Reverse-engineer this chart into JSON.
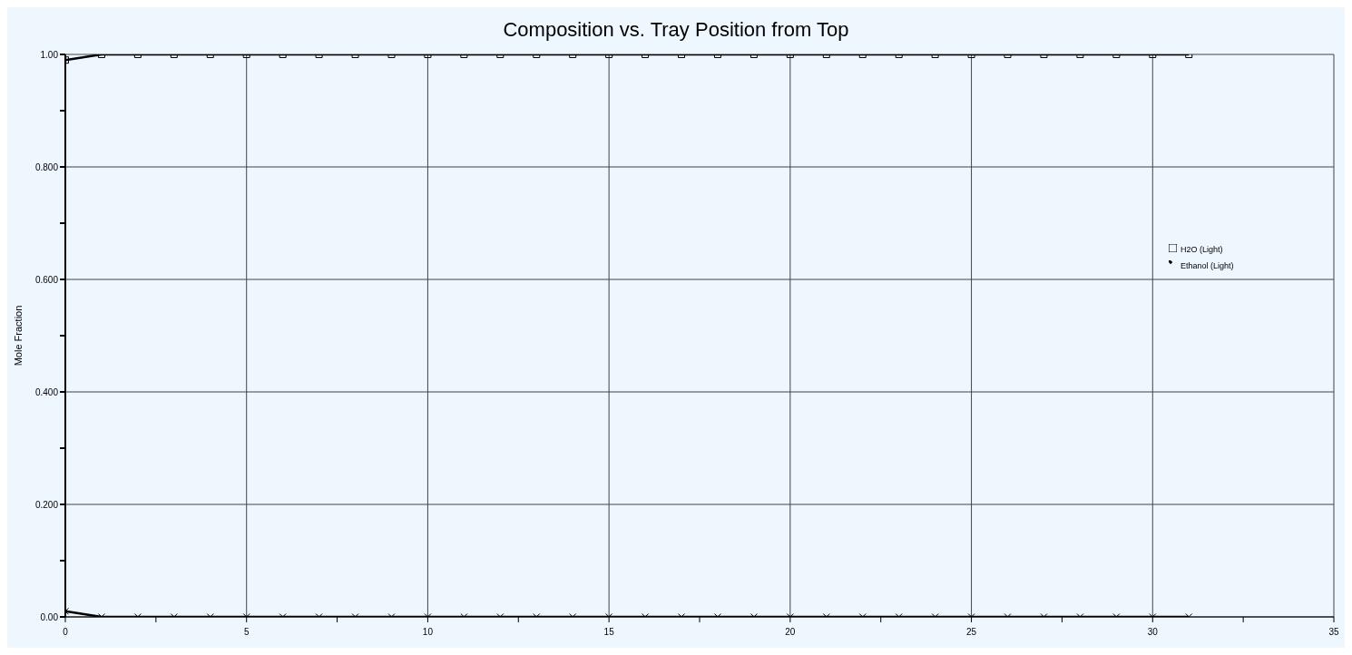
{
  "chart_data": {
    "type": "line",
    "title": "Composition vs. Tray Position from Top",
    "ylabel": "Mole Fraction",
    "x": [
      0,
      1,
      2,
      3,
      4,
      5,
      6,
      7,
      8,
      9,
      10,
      11,
      12,
      13,
      14,
      15,
      16,
      17,
      18,
      19,
      20,
      21,
      22,
      23,
      24,
      25,
      26,
      27,
      28,
      29,
      30,
      31
    ],
    "series": [
      {
        "name": "H2O (Light)",
        "color": "#000000",
        "marker": "square",
        "values": [
          0.99,
          1,
          1,
          1,
          1,
          1,
          1,
          1,
          1,
          1,
          1,
          1,
          1,
          1,
          1,
          1,
          1,
          1,
          1,
          1,
          1,
          1,
          1,
          1,
          1,
          1,
          1,
          1,
          1,
          1,
          1,
          1
        ]
      },
      {
        "name": "Ethanol (Light)",
        "color": "#000000",
        "marker": "cross",
        "values": [
          0.01,
          0,
          0,
          0,
          0,
          0,
          0,
          0,
          0,
          0,
          0,
          0,
          0,
          0,
          0,
          0,
          0,
          0,
          0,
          0,
          0,
          0,
          0,
          0,
          0,
          0,
          0,
          0,
          0,
          0,
          0,
          0
        ]
      }
    ],
    "xlim": [
      0,
      35
    ],
    "xticks": [
      0,
      {
        "value": 2.5,
        "label": null
      },
      5,
      {
        "value": 7.5,
        "label": null
      },
      10,
      {
        "value": 12.5,
        "label": null
      },
      15,
      {
        "value": 17.5,
        "label": null
      },
      20,
      {
        "value": 22.5,
        "label": null
      },
      25,
      {
        "value": 27.5,
        "label": null
      },
      30,
      {
        "value": 32.5,
        "label": null
      },
      35
    ],
    "ylim": [
      0,
      1
    ],
    "yticks": [
      {
        "value": 0,
        "label": "0.00"
      },
      {
        "value": 0.1,
        "label": null
      },
      {
        "value": 0.2,
        "label": "0.200"
      },
      {
        "value": 0.3,
        "label": null
      },
      {
        "value": 0.4,
        "label": "0.400"
      },
      {
        "value": 0.5,
        "label": null
      },
      {
        "value": 0.6,
        "label": "0.600"
      },
      {
        "value": 0.7,
        "label": null
      },
      {
        "value": 0.8,
        "label": "0.800"
      },
      {
        "value": 0.9,
        "label": null
      },
      {
        "value": 1,
        "label": "1.00"
      }
    ],
    "grid": true,
    "legend": "right",
    "line_style": "solid"
  }
}
